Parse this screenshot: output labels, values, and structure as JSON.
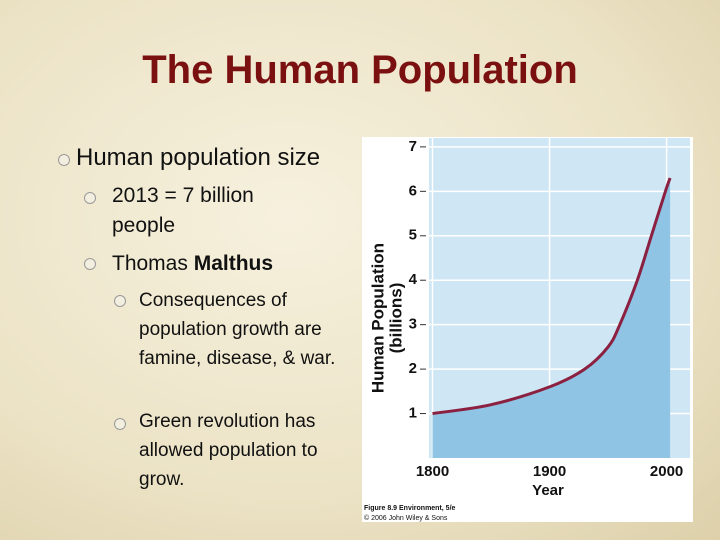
{
  "title": "The Human Population",
  "bullets": {
    "level1": "Human population size",
    "level2a": "2013 = 7 billion people",
    "level2b_plain": "Thomas",
    "level2b_bold": "Malthus",
    "level3a": "Consequences of population growth are famine, disease, & war.",
    "level3b": "Green revolution has allowed population to grow."
  },
  "chart_data": {
    "type": "area",
    "x_label": "Year",
    "y_label": "Human Population",
    "y_label_unit": "(billions)",
    "caption": "Figure 8.9 Environment, 5/e",
    "credit": "© 2006 John Wiley & Sons",
    "x": [
      1800,
      1850,
      1900,
      1930,
      1950,
      1960,
      1975,
      1987,
      1999,
      2003
    ],
    "values": [
      1.0,
      1.2,
      1.6,
      2.0,
      2.5,
      3.0,
      4.0,
      5.0,
      6.0,
      6.3
    ],
    "color": "#8b2040",
    "fill": "#8fc4e4",
    "xlim": [
      1797,
      2020
    ],
    "ylim": [
      0,
      7.2
    ],
    "xticks": [
      1800,
      1900,
      2000
    ],
    "yticks": [
      1,
      2,
      3,
      4,
      5,
      6,
      7
    ],
    "grid": true
  }
}
